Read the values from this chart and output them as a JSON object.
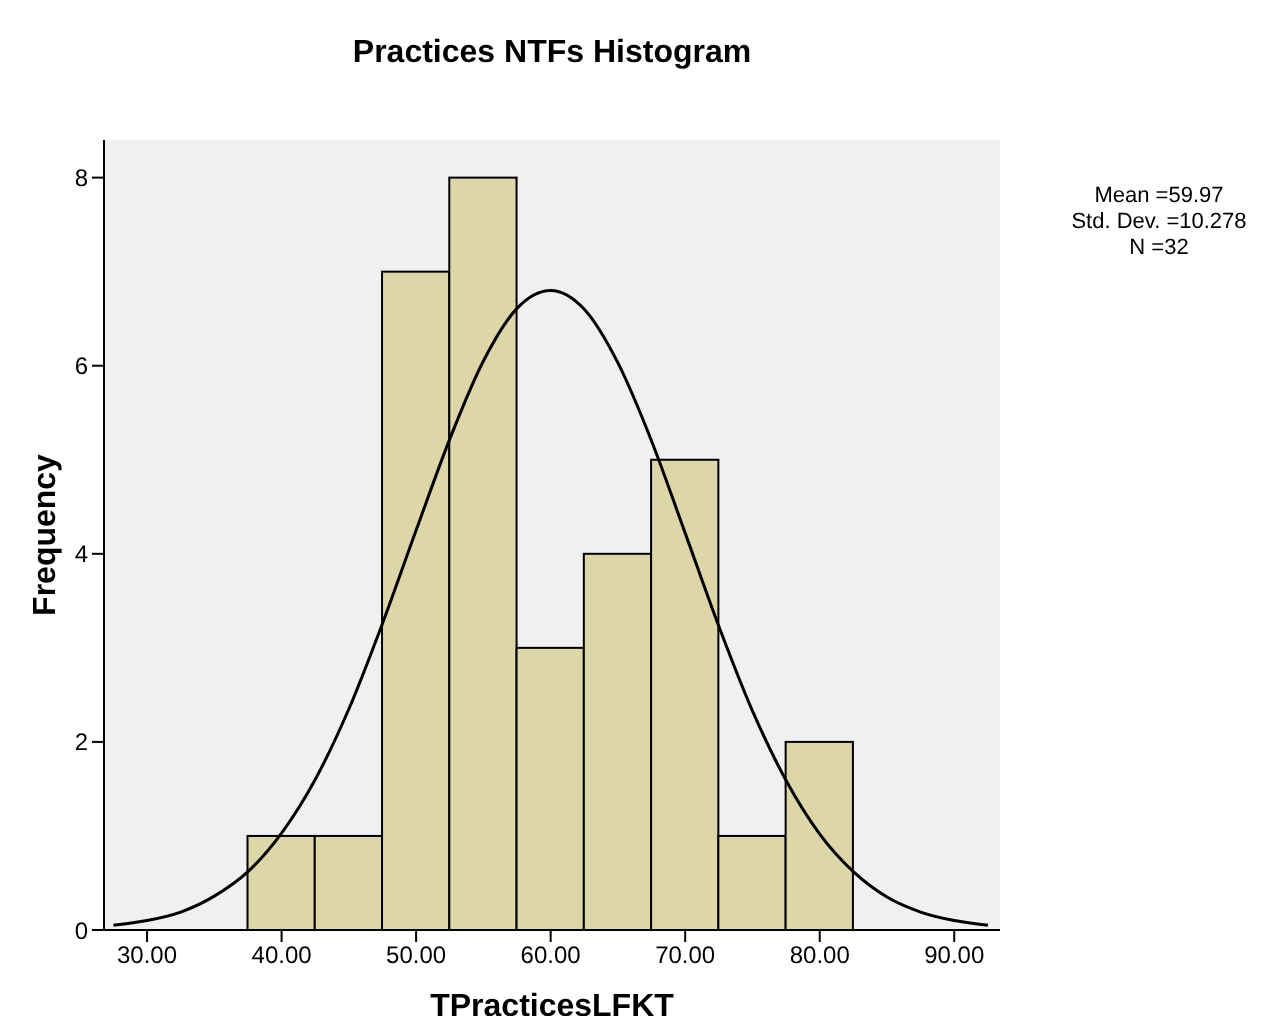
{
  "chart_data": {
    "type": "histogram",
    "title": "Practices NTFs Histogram",
    "xlabel": "TPracticesLFKT",
    "ylabel": "Frequency",
    "annotations": [
      "Mean =59.97",
      "Std. Dev. =10.278",
      "N =32"
    ],
    "bins": [
      37.5,
      42.5,
      47.5,
      52.5,
      57.5,
      62.5,
      67.5,
      72.5,
      77.5,
      82.5
    ],
    "values": [
      1,
      1,
      7,
      8,
      3,
      4,
      5,
      1,
      2
    ],
    "color": "#dcd6a9",
    "series": [
      {
        "type": "line",
        "color": "#000000",
        "x": [
          27.5,
          30,
          32.5,
          35,
          37.5,
          40,
          42.5,
          45,
          47.5,
          50,
          52.5,
          55,
          57.5,
          60,
          62.5,
          65,
          67.5,
          70,
          72.5,
          75,
          77.5,
          80,
          82.5,
          85,
          87.5,
          90,
          92.5
        ],
        "values": [
          0.05,
          0.1,
          0.19,
          0.36,
          0.62,
          1.03,
          1.6,
          2.35,
          3.26,
          4.25,
          5.22,
          6.05,
          6.61,
          6.8,
          6.6,
          6.03,
          5.2,
          4.22,
          3.23,
          2.33,
          1.59,
          1.02,
          0.62,
          0.35,
          0.19,
          0.1,
          0.05
        ]
      }
    ],
    "xlim": [
      26.8,
      93.4
    ],
    "xticks": [
      {
        "value": 30,
        "label": "30.00"
      },
      {
        "value": 40,
        "label": "40.00"
      },
      {
        "value": 50,
        "label": "50.00"
      },
      {
        "value": 60,
        "label": "60.00"
      },
      {
        "value": 70,
        "label": "70.00"
      },
      {
        "value": 80,
        "label": "80.00"
      },
      {
        "value": 90,
        "label": "90.00"
      }
    ],
    "ylim": [
      0,
      8.4
    ],
    "yticks": [
      0,
      2,
      4,
      6,
      8
    ]
  }
}
